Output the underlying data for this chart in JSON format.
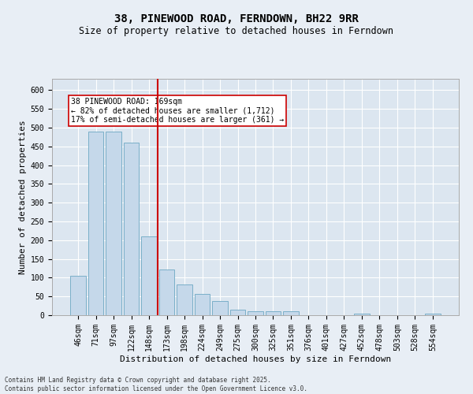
{
  "title": "38, PINEWOOD ROAD, FERNDOWN, BH22 9RR",
  "subtitle": "Size of property relative to detached houses in Ferndown",
  "xlabel": "Distribution of detached houses by size in Ferndown",
  "ylabel": "Number of detached properties",
  "bar_color": "#c5d8ea",
  "bar_edge_color": "#7aafc8",
  "vline_color": "#cc0000",
  "annotation_text": "38 PINEWOOD ROAD: 169sqm\n← 82% of detached houses are smaller (1,712)\n17% of semi-detached houses are larger (361) →",
  "annotation_box_color": "white",
  "annotation_box_edge_color": "#cc0000",
  "footer": "Contains HM Land Registry data © Crown copyright and database right 2025.\nContains public sector information licensed under the Open Government Licence v3.0.",
  "categories": [
    "46sqm",
    "71sqm",
    "97sqm",
    "122sqm",
    "148sqm",
    "173sqm",
    "198sqm",
    "224sqm",
    "249sqm",
    "275sqm",
    "300sqm",
    "325sqm",
    "351sqm",
    "376sqm",
    "401sqm",
    "427sqm",
    "452sqm",
    "478sqm",
    "503sqm",
    "528sqm",
    "554sqm"
  ],
  "values": [
    105,
    490,
    490,
    460,
    210,
    122,
    82,
    57,
    38,
    14,
    10,
    11,
    11,
    1,
    1,
    1,
    5,
    0,
    0,
    0,
    4
  ],
  "ylim": [
    0,
    630
  ],
  "yticks": [
    0,
    50,
    100,
    150,
    200,
    250,
    300,
    350,
    400,
    450,
    500,
    550,
    600
  ],
  "background_color": "#e8eef5",
  "plot_bg_color": "#dce6f0",
  "grid_color": "#ffffff",
  "title_fontsize": 10,
  "subtitle_fontsize": 8.5,
  "tick_fontsize": 7,
  "label_fontsize": 8,
  "footer_fontsize": 5.5,
  "annot_fontsize": 7,
  "vline_bar_index": 5
}
